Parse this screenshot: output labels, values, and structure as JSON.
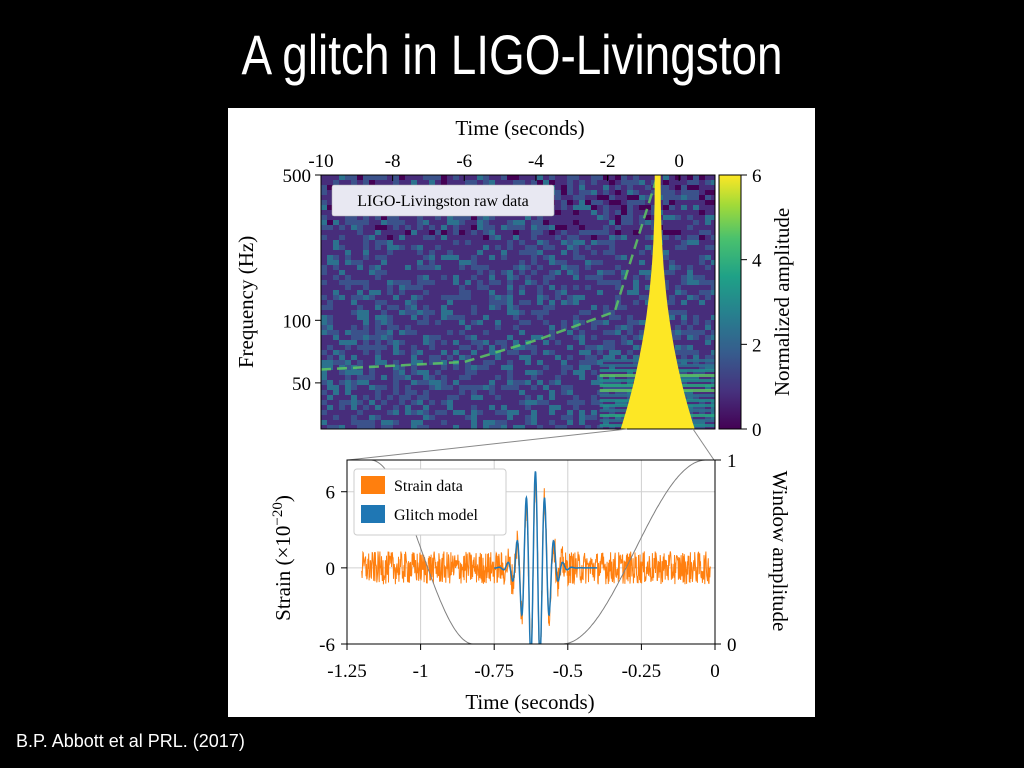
{
  "slide": {
    "title": "A glitch in LIGO-Livingston",
    "citation": "B.P. Abbott et al PRL. (2017)"
  },
  "colors": {
    "background": "#000000",
    "strain": "#ff7f0e",
    "glitch_model": "#1f77b4",
    "window": "#808080",
    "glitch_spectro": "#fde725"
  },
  "chart_data": [
    {
      "type": "heatmap",
      "title": "",
      "annotation": "LIGO-Livingston raw data",
      "xlabel": "Time (seconds)",
      "xlabel_position": "top",
      "ylabel": "Frequency (Hz)",
      "xlim": [
        -10,
        1
      ],
      "ylim": [
        30,
        500
      ],
      "y_scale": "log",
      "xticks": [
        -10,
        -8,
        -6,
        -4,
        -2,
        0
      ],
      "xtick_labels": [
        "-10",
        "-8",
        "-6",
        "-4",
        "-2",
        "0"
      ],
      "yticks": [
        50,
        100,
        500
      ],
      "ytick_labels": [
        "50",
        "100",
        "500"
      ],
      "colorbar": {
        "label": "Normalized amplitude",
        "range": [
          0,
          6
        ],
        "ticks": [
          0,
          2,
          4,
          6
        ],
        "tick_labels": [
          "0",
          "2",
          "4",
          "6"
        ],
        "colormap": "viridis"
      },
      "features": {
        "glitch_time": -0.6,
        "chirp_track": [
          [
            -10,
            58
          ],
          [
            -6,
            63
          ],
          [
            -4,
            80
          ],
          [
            -1.8,
            110
          ],
          [
            -0.6,
            500
          ]
        ]
      }
    },
    {
      "type": "line",
      "title": "",
      "xlabel": "Time (seconds)",
      "ylabel": "Strain (×10",
      "ylabel_exponent": "−20",
      "ylabel_suffix": ")",
      "y2label": "Window amplitude",
      "xlim": [
        -1.25,
        0
      ],
      "ylim": [
        -6,
        8.5
      ],
      "y2lim": [
        0,
        1
      ],
      "xticks": [
        -1.25,
        -1,
        -0.75,
        -0.5,
        -0.25,
        0
      ],
      "xtick_labels": [
        "-1.25",
        "-1",
        "-0.75",
        "-0.5",
        "-0.25",
        "0"
      ],
      "yticks": [
        -6,
        0,
        6
      ],
      "ytick_labels": [
        "-6",
        "0",
        "6"
      ],
      "y2ticks": [
        0,
        1
      ],
      "y2tick_labels": [
        "0",
        "1"
      ],
      "grid": true,
      "legend": "upper-left",
      "series": [
        {
          "name": "Strain data",
          "kind": "noise",
          "noise_amplitude": 1.0,
          "color": "#ff7f0e"
        },
        {
          "name": "Glitch model",
          "kind": "wavelet",
          "center": -0.61,
          "peak": 7.6,
          "color": "#1f77b4"
        }
      ],
      "window": {
        "type": "tukey",
        "flat": [
          -1.25,
          -1.17
        ],
        "zero": [
          -0.82,
          -0.52
        ],
        "end_flat": [
          -0.03,
          0
        ]
      }
    }
  ]
}
